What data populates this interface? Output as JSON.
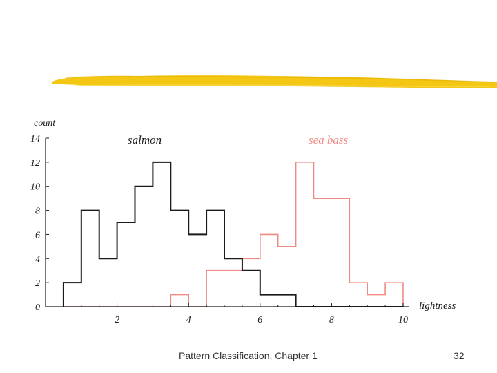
{
  "slide": {
    "footer": "Pattern Classification, Chapter 1",
    "page_number": "32"
  },
  "colors": {
    "brush": "#f2c200",
    "salmon_series": "#1a1a1a",
    "sea_bass_series": "#f08a84",
    "axis": "#1a1a1a"
  },
  "chart_data": {
    "type": "histogram",
    "title": "",
    "xlabel": "lightness",
    "ylabel": "count",
    "xlim": [
      0,
      10.2
    ],
    "ylim": [
      0,
      14
    ],
    "xticks": [
      2,
      4,
      6,
      8,
      10
    ],
    "yticks": [
      0,
      2,
      4,
      6,
      8,
      10,
      12,
      14
    ],
    "grid": false,
    "bin_edges": [
      0.5,
      1.0,
      1.5,
      2.0,
      2.5,
      3.0,
      3.5,
      4.0,
      4.5,
      5.0,
      5.5,
      6.0,
      6.5,
      7.0,
      7.5,
      8.0,
      8.5,
      9.0,
      9.5,
      10.0
    ],
    "series": [
      {
        "name": "salmon",
        "color": "#1a1a1a",
        "counts": [
          2,
          8,
          4,
          7,
          10,
          12,
          8,
          6,
          8,
          4,
          3,
          1,
          1,
          0,
          0,
          0,
          0,
          0,
          0
        ]
      },
      {
        "name": "sea bass",
        "color": "#f08a84",
        "counts": [
          0,
          0,
          0,
          0,
          0,
          0,
          1,
          0,
          3,
          3,
          4,
          6,
          5,
          12,
          9,
          9,
          2,
          1,
          2
        ]
      }
    ]
  }
}
